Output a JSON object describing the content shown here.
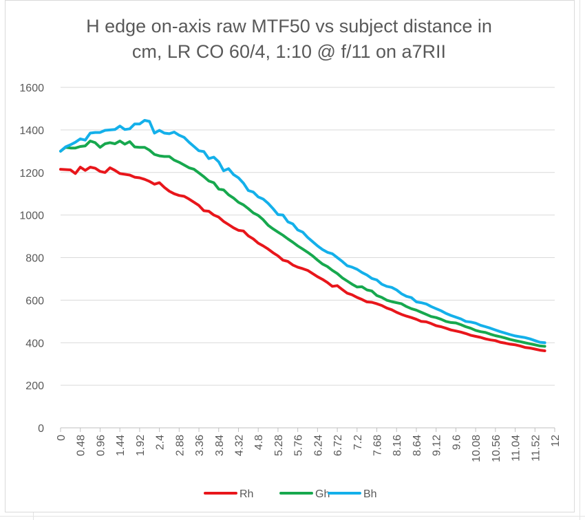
{
  "chart_data": {
    "type": "line",
    "title_line1": "H edge on-axis raw MTF50 vs subject distance in",
    "title_line2": "cm, LR CO 60/4, 1:10 @ f/11 on a7RII",
    "xlabel": "",
    "ylabel": "",
    "ylim": [
      0,
      1600
    ],
    "xlim": [
      0,
      12
    ],
    "y_ticks": [
      "0",
      "200",
      "400",
      "600",
      "800",
      "1000",
      "1200",
      "1400",
      "1600"
    ],
    "x_ticks": [
      {
        "value": 0,
        "label": "0"
      },
      {
        "value": 0.48,
        "label": "0.48"
      },
      {
        "value": 0.96,
        "label": "0.96"
      },
      {
        "value": 1.44,
        "label": "1.44"
      },
      {
        "value": 1.92,
        "label": "1.92"
      },
      {
        "value": 2.4,
        "label": "2.4"
      },
      {
        "value": 2.88,
        "label": "2.88"
      },
      {
        "value": 3.36,
        "label": "3.36"
      },
      {
        "value": 3.84,
        "label": "3.84"
      },
      {
        "value": 4.32,
        "label": "4.32"
      },
      {
        "value": 4.8,
        "label": "4.8"
      },
      {
        "value": 5.28,
        "label": "5.28"
      },
      {
        "value": 5.76,
        "label": "5.76"
      },
      {
        "value": 6.24,
        "label": "6.24"
      },
      {
        "value": 6.72,
        "label": "6.72"
      },
      {
        "value": 7.2,
        "label": "7.2"
      },
      {
        "value": 7.68,
        "label": "7.68"
      },
      {
        "value": 8.16,
        "label": "8.16"
      },
      {
        "value": 8.64,
        "label": "8.64"
      },
      {
        "value": 9.12,
        "label": "9.12"
      },
      {
        "value": 9.6,
        "label": "9.6"
      },
      {
        "value": 10.08,
        "label": "10.08"
      },
      {
        "value": 10.56,
        "label": "10.56"
      },
      {
        "value": 11.04,
        "label": "11.04"
      },
      {
        "value": 11.52,
        "label": "11.52"
      },
      {
        "value": 12,
        "label": "12"
      }
    ],
    "grid": true,
    "legend_position": "bottom",
    "series": [
      {
        "name": "Rh",
        "color": "#e8161b",
        "points": [
          [
            0,
            1215
          ],
          [
            0.24,
            1212
          ],
          [
            0.36,
            1195
          ],
          [
            0.48,
            1225
          ],
          [
            0.6,
            1210
          ],
          [
            0.72,
            1225
          ],
          [
            0.84,
            1220
          ],
          [
            0.96,
            1205
          ],
          [
            1.08,
            1200
          ],
          [
            1.2,
            1222
          ],
          [
            1.32,
            1210
          ],
          [
            1.44,
            1195
          ],
          [
            1.68,
            1188
          ],
          [
            1.8,
            1178
          ],
          [
            1.92,
            1175
          ],
          [
            2.04,
            1168
          ],
          [
            2.16,
            1158
          ],
          [
            2.28,
            1145
          ],
          [
            2.4,
            1152
          ],
          [
            2.52,
            1130
          ],
          [
            2.64,
            1112
          ],
          [
            2.76,
            1100
          ],
          [
            2.88,
            1092
          ],
          [
            3.0,
            1088
          ],
          [
            3.12,
            1075
          ],
          [
            3.24,
            1060
          ],
          [
            3.36,
            1045
          ],
          [
            3.48,
            1020
          ],
          [
            3.6,
            1018
          ],
          [
            3.72,
            1000
          ],
          [
            3.84,
            990
          ],
          [
            3.96,
            970
          ],
          [
            4.08,
            955
          ],
          [
            4.2,
            940
          ],
          [
            4.32,
            928
          ],
          [
            4.44,
            925
          ],
          [
            4.56,
            902
          ],
          [
            4.68,
            888
          ],
          [
            4.8,
            868
          ],
          [
            4.92,
            855
          ],
          [
            5.04,
            840
          ],
          [
            5.16,
            823
          ],
          [
            5.28,
            808
          ],
          [
            5.4,
            788
          ],
          [
            5.52,
            782
          ],
          [
            5.64,
            765
          ],
          [
            5.76,
            755
          ],
          [
            5.88,
            748
          ],
          [
            6.0,
            740
          ],
          [
            6.12,
            725
          ],
          [
            6.24,
            710
          ],
          [
            6.36,
            698
          ],
          [
            6.48,
            683
          ],
          [
            6.6,
            665
          ],
          [
            6.72,
            668
          ],
          [
            6.84,
            650
          ],
          [
            6.96,
            633
          ],
          [
            7.08,
            625
          ],
          [
            7.2,
            613
          ],
          [
            7.32,
            603
          ],
          [
            7.44,
            592
          ],
          [
            7.56,
            590
          ],
          [
            7.68,
            583
          ],
          [
            7.8,
            575
          ],
          [
            7.92,
            563
          ],
          [
            8.04,
            555
          ],
          [
            8.16,
            543
          ],
          [
            8.28,
            533
          ],
          [
            8.4,
            525
          ],
          [
            8.52,
            518
          ],
          [
            8.64,
            510
          ],
          [
            8.76,
            500
          ],
          [
            8.88,
            498
          ],
          [
            9.0,
            490
          ],
          [
            9.12,
            480
          ],
          [
            9.24,
            475
          ],
          [
            9.36,
            468
          ],
          [
            9.48,
            460
          ],
          [
            9.6,
            455
          ],
          [
            9.72,
            450
          ],
          [
            9.84,
            443
          ],
          [
            9.96,
            435
          ],
          [
            10.08,
            430
          ],
          [
            10.2,
            425
          ],
          [
            10.32,
            418
          ],
          [
            10.44,
            413
          ],
          [
            10.56,
            410
          ],
          [
            10.68,
            402
          ],
          [
            10.8,
            398
          ],
          [
            10.92,
            393
          ],
          [
            11.04,
            390
          ],
          [
            11.16,
            385
          ],
          [
            11.28,
            378
          ],
          [
            11.4,
            375
          ],
          [
            11.52,
            370
          ],
          [
            11.64,
            365
          ],
          [
            11.76,
            362
          ]
        ]
      },
      {
        "name": "Gh",
        "color": "#17a84e",
        "points": [
          [
            0,
            1300
          ],
          [
            0.12,
            1318
          ],
          [
            0.24,
            1315
          ],
          [
            0.36,
            1315
          ],
          [
            0.48,
            1322
          ],
          [
            0.6,
            1325
          ],
          [
            0.72,
            1348
          ],
          [
            0.84,
            1340
          ],
          [
            0.96,
            1318
          ],
          [
            1.08,
            1335
          ],
          [
            1.2,
            1340
          ],
          [
            1.32,
            1335
          ],
          [
            1.44,
            1348
          ],
          [
            1.56,
            1333
          ],
          [
            1.68,
            1345
          ],
          [
            1.8,
            1320
          ],
          [
            1.92,
            1318
          ],
          [
            2.04,
            1318
          ],
          [
            2.16,
            1305
          ],
          [
            2.28,
            1285
          ],
          [
            2.4,
            1278
          ],
          [
            2.52,
            1275
          ],
          [
            2.64,
            1275
          ],
          [
            2.76,
            1258
          ],
          [
            2.88,
            1248
          ],
          [
            3.0,
            1235
          ],
          [
            3.12,
            1222
          ],
          [
            3.24,
            1215
          ],
          [
            3.36,
            1198
          ],
          [
            3.48,
            1180
          ],
          [
            3.6,
            1160
          ],
          [
            3.72,
            1152
          ],
          [
            3.84,
            1122
          ],
          [
            3.96,
            1118
          ],
          [
            4.08,
            1095
          ],
          [
            4.2,
            1080
          ],
          [
            4.32,
            1060
          ],
          [
            4.44,
            1048
          ],
          [
            4.56,
            1030
          ],
          [
            4.68,
            1010
          ],
          [
            4.8,
            998
          ],
          [
            4.92,
            978
          ],
          [
            5.04,
            952
          ],
          [
            5.16,
            935
          ],
          [
            5.28,
            920
          ],
          [
            5.4,
            905
          ],
          [
            5.52,
            888
          ],
          [
            5.64,
            872
          ],
          [
            5.76,
            855
          ],
          [
            5.88,
            840
          ],
          [
            6.0,
            825
          ],
          [
            6.12,
            808
          ],
          [
            6.24,
            788
          ],
          [
            6.36,
            770
          ],
          [
            6.48,
            758
          ],
          [
            6.6,
            740
          ],
          [
            6.72,
            725
          ],
          [
            6.84,
            705
          ],
          [
            6.96,
            690
          ],
          [
            7.08,
            675
          ],
          [
            7.2,
            662
          ],
          [
            7.32,
            663
          ],
          [
            7.44,
            648
          ],
          [
            7.56,
            643
          ],
          [
            7.68,
            622
          ],
          [
            7.8,
            613
          ],
          [
            7.92,
            600
          ],
          [
            8.04,
            593
          ],
          [
            8.16,
            588
          ],
          [
            8.28,
            583
          ],
          [
            8.4,
            570
          ],
          [
            8.52,
            560
          ],
          [
            8.64,
            553
          ],
          [
            8.76,
            543
          ],
          [
            8.88,
            533
          ],
          [
            9.0,
            523
          ],
          [
            9.12,
            518
          ],
          [
            9.24,
            510
          ],
          [
            9.36,
            500
          ],
          [
            9.48,
            495
          ],
          [
            9.6,
            493
          ],
          [
            9.72,
            485
          ],
          [
            9.84,
            475
          ],
          [
            9.96,
            468
          ],
          [
            10.08,
            458
          ],
          [
            10.2,
            452
          ],
          [
            10.32,
            448
          ],
          [
            10.44,
            440
          ],
          [
            10.56,
            433
          ],
          [
            10.68,
            428
          ],
          [
            10.8,
            422
          ],
          [
            10.92,
            415
          ],
          [
            11.04,
            410
          ],
          [
            11.16,
            405
          ],
          [
            11.28,
            400
          ],
          [
            11.4,
            395
          ],
          [
            11.52,
            390
          ],
          [
            11.64,
            385
          ],
          [
            11.76,
            383
          ]
        ]
      },
      {
        "name": "Bh",
        "color": "#14b0ea",
        "points": [
          [
            0,
            1300
          ],
          [
            0.12,
            1320
          ],
          [
            0.24,
            1330
          ],
          [
            0.36,
            1342
          ],
          [
            0.48,
            1358
          ],
          [
            0.6,
            1352
          ],
          [
            0.72,
            1385
          ],
          [
            0.84,
            1388
          ],
          [
            0.96,
            1388
          ],
          [
            1.08,
            1398
          ],
          [
            1.2,
            1400
          ],
          [
            1.32,
            1402
          ],
          [
            1.44,
            1418
          ],
          [
            1.56,
            1402
          ],
          [
            1.68,
            1405
          ],
          [
            1.8,
            1428
          ],
          [
            1.92,
            1428
          ],
          [
            2.04,
            1445
          ],
          [
            2.16,
            1440
          ],
          [
            2.28,
            1385
          ],
          [
            2.4,
            1398
          ],
          [
            2.52,
            1385
          ],
          [
            2.64,
            1382
          ],
          [
            2.76,
            1390
          ],
          [
            2.88,
            1375
          ],
          [
            3.0,
            1365
          ],
          [
            3.12,
            1342
          ],
          [
            3.24,
            1322
          ],
          [
            3.36,
            1302
          ],
          [
            3.48,
            1298
          ],
          [
            3.6,
            1265
          ],
          [
            3.72,
            1272
          ],
          [
            3.84,
            1250
          ],
          [
            3.96,
            1208
          ],
          [
            4.08,
            1218
          ],
          [
            4.2,
            1190
          ],
          [
            4.32,
            1175
          ],
          [
            4.44,
            1150
          ],
          [
            4.56,
            1115
          ],
          [
            4.68,
            1108
          ],
          [
            4.8,
            1085
          ],
          [
            4.92,
            1075
          ],
          [
            5.04,
            1055
          ],
          [
            5.16,
            1030
          ],
          [
            5.28,
            1002
          ],
          [
            5.4,
            1000
          ],
          [
            5.52,
            968
          ],
          [
            5.64,
            958
          ],
          [
            5.76,
            930
          ],
          [
            5.88,
            920
          ],
          [
            6.0,
            895
          ],
          [
            6.12,
            875
          ],
          [
            6.24,
            855
          ],
          [
            6.36,
            838
          ],
          [
            6.48,
            825
          ],
          [
            6.6,
            818
          ],
          [
            6.72,
            800
          ],
          [
            6.84,
            782
          ],
          [
            6.96,
            762
          ],
          [
            7.08,
            755
          ],
          [
            7.2,
            745
          ],
          [
            7.32,
            730
          ],
          [
            7.44,
            718
          ],
          [
            7.56,
            702
          ],
          [
            7.68,
            695
          ],
          [
            7.8,
            675
          ],
          [
            7.92,
            665
          ],
          [
            8.04,
            660
          ],
          [
            8.16,
            648
          ],
          [
            8.28,
            630
          ],
          [
            8.4,
            618
          ],
          [
            8.52,
            612
          ],
          [
            8.64,
            592
          ],
          [
            8.76,
            588
          ],
          [
            8.88,
            582
          ],
          [
            9.0,
            570
          ],
          [
            9.12,
            560
          ],
          [
            9.24,
            550
          ],
          [
            9.36,
            538
          ],
          [
            9.48,
            528
          ],
          [
            9.6,
            520
          ],
          [
            9.72,
            512
          ],
          [
            9.84,
            500
          ],
          [
            9.96,
            497
          ],
          [
            10.08,
            492
          ],
          [
            10.2,
            482
          ],
          [
            10.32,
            475
          ],
          [
            10.44,
            468
          ],
          [
            10.56,
            460
          ],
          [
            10.68,
            452
          ],
          [
            10.8,
            445
          ],
          [
            10.92,
            438
          ],
          [
            11.04,
            432
          ],
          [
            11.16,
            428
          ],
          [
            11.28,
            424
          ],
          [
            11.4,
            418
          ],
          [
            11.52,
            410
          ],
          [
            11.64,
            402
          ],
          [
            11.76,
            400
          ]
        ]
      }
    ]
  }
}
